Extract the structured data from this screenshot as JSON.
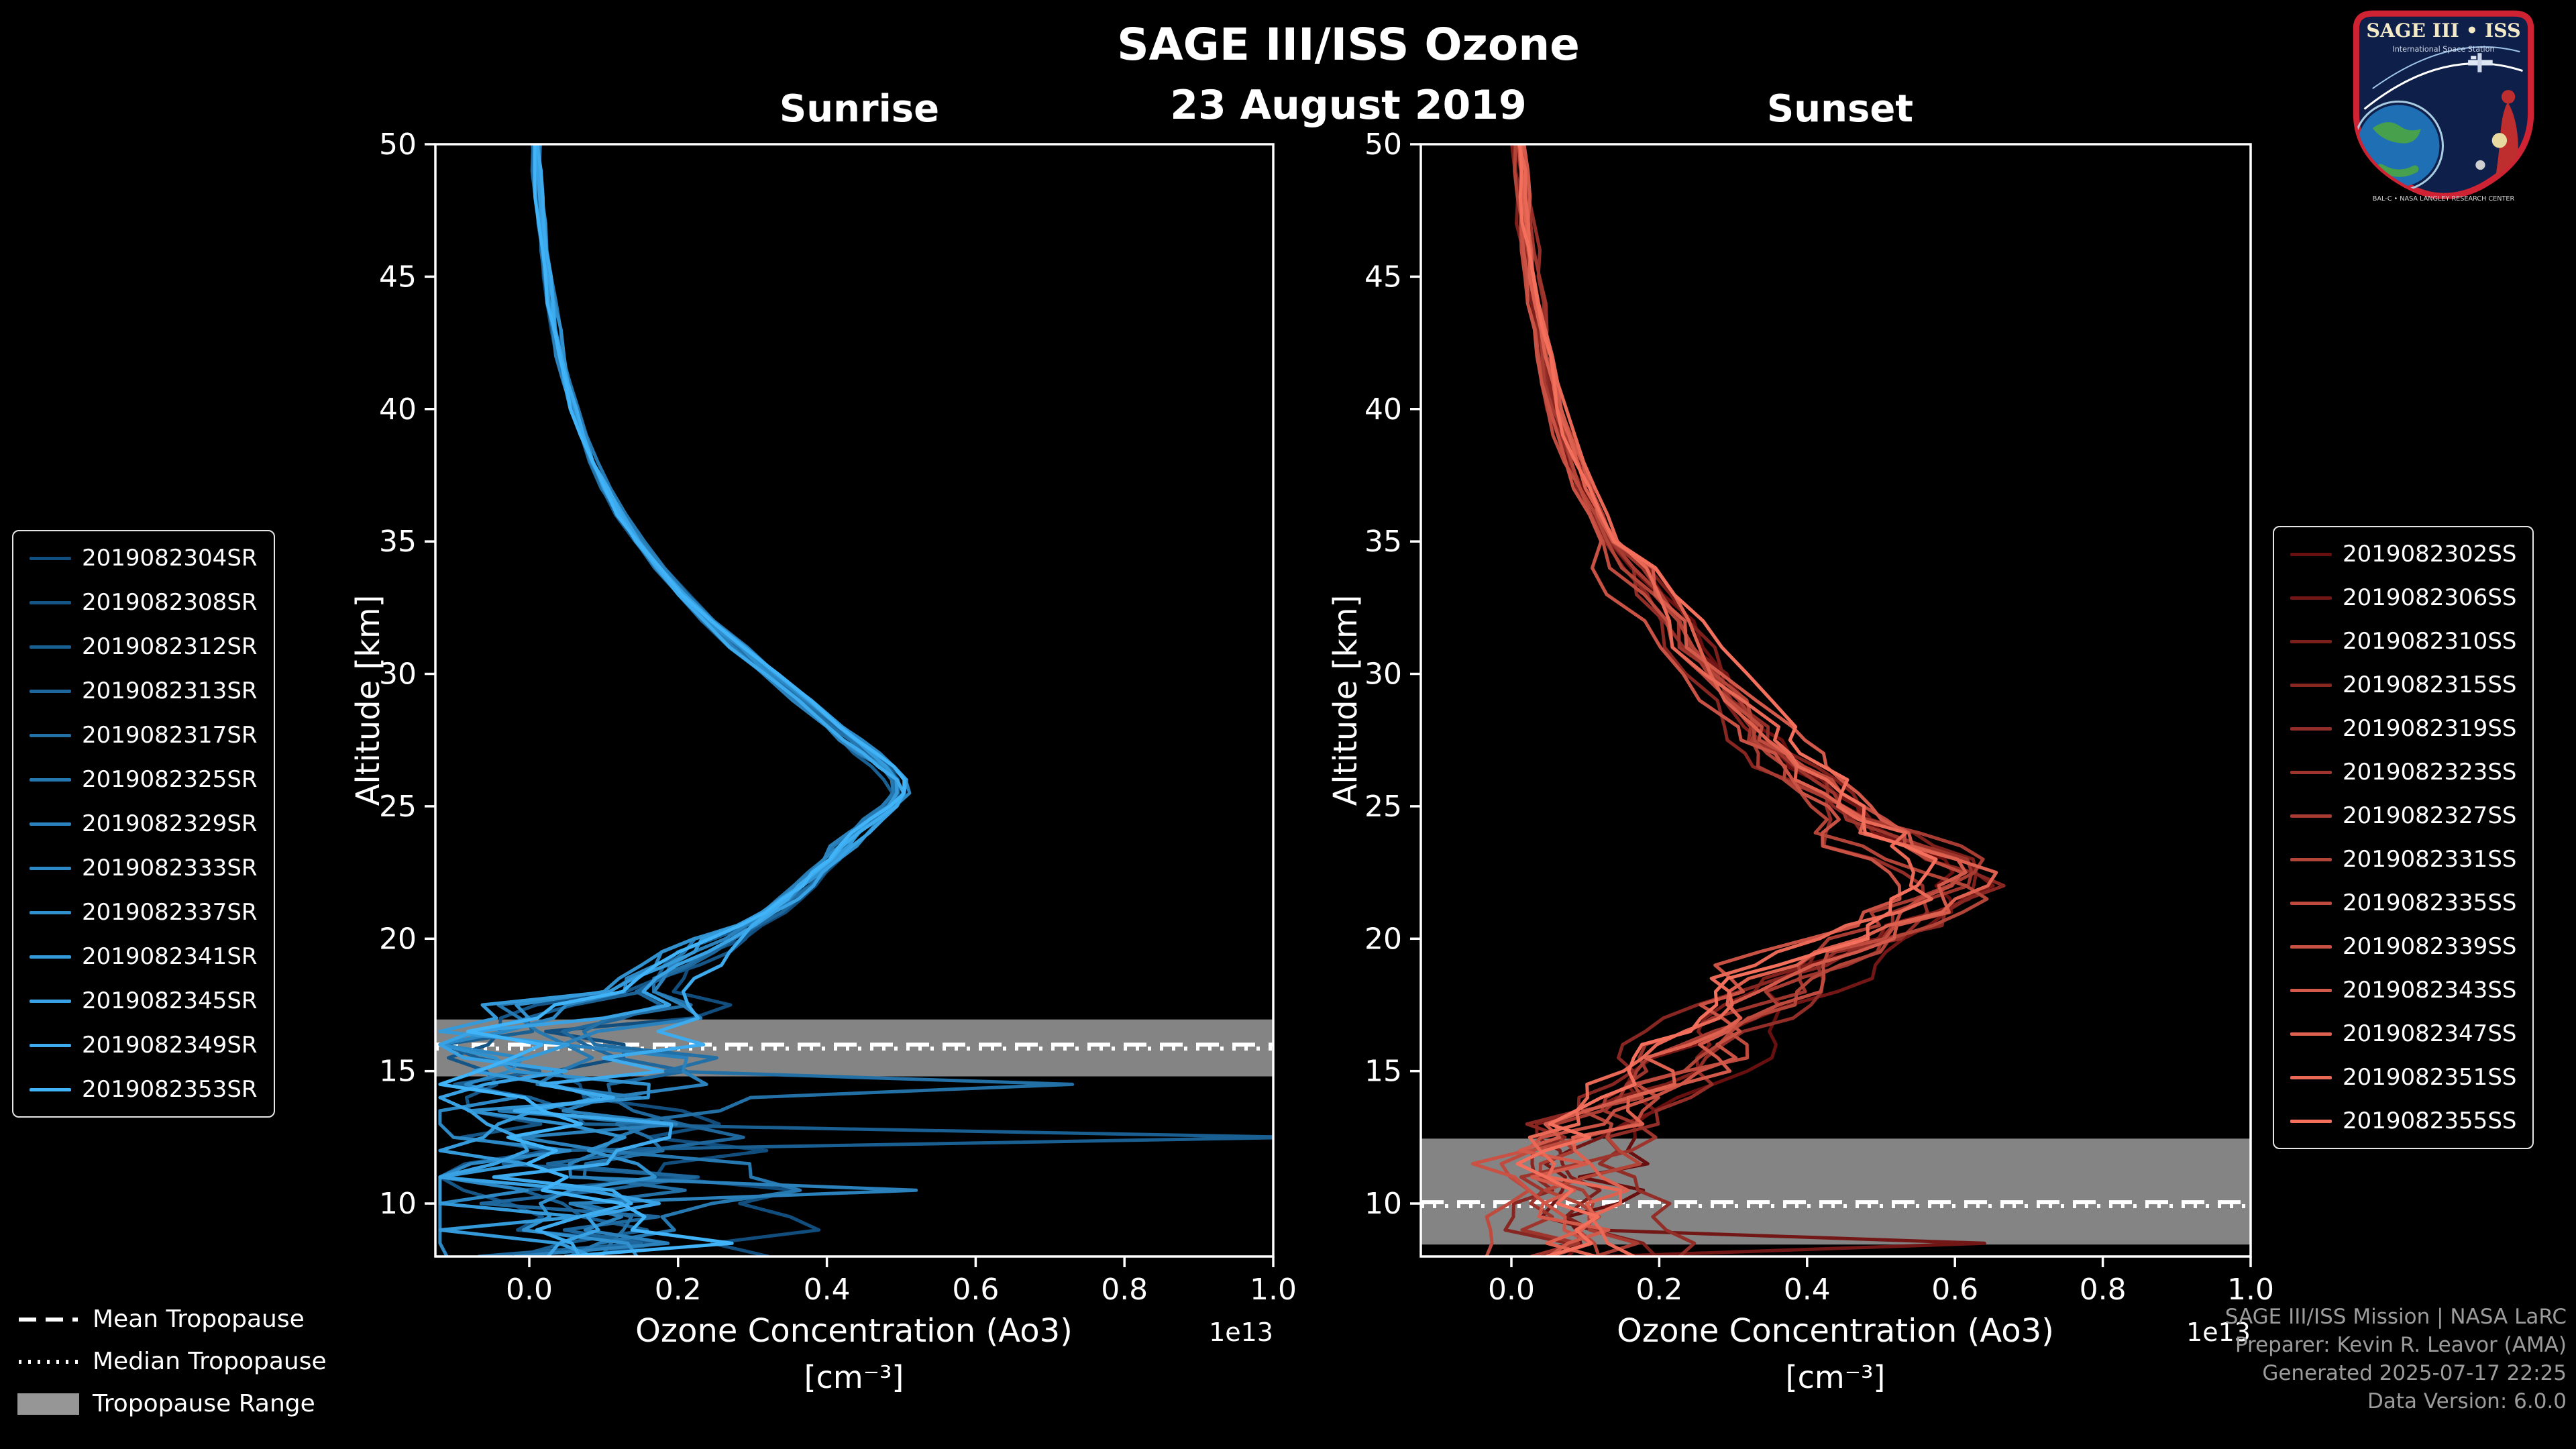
{
  "header": {
    "title": "SAGE III/ISS Ozone",
    "date": "23 August 2019"
  },
  "panels": [
    {
      "id": "sunrise",
      "title": "Sunrise",
      "xlabel": "Ozone Concentration (Ao3)",
      "xunits": "[cm⁻³]",
      "ylabel": "Altitude [km]",
      "offset_text": "1e13"
    },
    {
      "id": "sunset",
      "title": "Sunset",
      "xlabel": "Ozone Concentration (Ao3)",
      "xunits": "[cm⁻³]",
      "ylabel": "Altitude [km]",
      "offset_text": "1e13"
    }
  ],
  "colors": {
    "background": "#000000",
    "axis": "#ffffff",
    "band": "#969696",
    "tropopause_line": "#ffffff",
    "sunrise_dark": "#124e7d",
    "sunrise_light": "#41b3f8",
    "sunset_dark": "#67100f",
    "sunset_light": "#f4705c"
  },
  "tropopause_legend": {
    "items": [
      {
        "label": "Mean Tropopause",
        "style": "dashed"
      },
      {
        "label": "Median Tropopause",
        "style": "dotted"
      },
      {
        "label": "Tropopause Range",
        "style": "band"
      }
    ]
  },
  "credits": {
    "lines": [
      "SAGE III/ISS Mission | NASA LaRC",
      "Preparer: Kevin R. Leavor (AMA)",
      "Generated 2025-07-17 22:25",
      "Data Version: 6.0.0"
    ]
  },
  "logo": {
    "title": "SAGE III • ISS",
    "subtitle": "International Space Station",
    "ring_text": "BAL-C • NASA LANGLEY RESEARCH CENTER"
  },
  "chart_data": [
    {
      "type": "line",
      "title": "Sunrise",
      "xlabel": "Ozone Concentration (Ao3) [cm⁻³]",
      "ylabel": "Altitude [km]",
      "x_multiplier": "1e13",
      "xlim": [
        -0.125,
        1.0
      ],
      "ylim": [
        8,
        50
      ],
      "xticks": [
        0.0,
        0.2,
        0.4,
        0.6,
        0.8,
        1.0
      ],
      "yticks": [
        10,
        15,
        20,
        25,
        30,
        35,
        40,
        45,
        50
      ],
      "series_names": [
        "2019082304SR",
        "2019082308SR",
        "2019082312SR",
        "2019082313SR",
        "2019082317SR",
        "2019082325SR",
        "2019082329SR",
        "2019082333SR",
        "2019082337SR",
        "2019082341SR",
        "2019082345SR",
        "2019082349SR",
        "2019082353SR"
      ],
      "altitudes": [
        50,
        49,
        48,
        47,
        46,
        45,
        44,
        43,
        42,
        41,
        40,
        39,
        38,
        37,
        36,
        35,
        34,
        33,
        32,
        31,
        30,
        29,
        28,
        27.5,
        27,
        26.5,
        26,
        25.5,
        25,
        24.5,
        24,
        23.5,
        23,
        22.5,
        22,
        21.5,
        21,
        20.5,
        20,
        19.5,
        19,
        18.5,
        18,
        17.5,
        17,
        16.5,
        16,
        15.5,
        15,
        14.5,
        14,
        13.5,
        13,
        12.5,
        12,
        11.5,
        11,
        10.5,
        10,
        9.5,
        9,
        8.5,
        8
      ],
      "mean_profile": [
        0.01,
        0.012,
        0.014,
        0.017,
        0.02,
        0.024,
        0.028,
        0.034,
        0.04,
        0.048,
        0.058,
        0.07,
        0.084,
        0.102,
        0.122,
        0.146,
        0.174,
        0.205,
        0.24,
        0.28,
        0.322,
        0.365,
        0.408,
        0.43,
        0.452,
        0.478,
        0.497,
        0.5,
        0.488,
        0.466,
        0.444,
        0.424,
        0.408,
        0.39,
        0.372,
        0.35,
        0.325,
        0.295,
        0.262,
        0.228,
        0.2,
        0.172,
        0.148,
        0.118,
        0.082,
        0.055,
        0.042,
        0.055,
        0.048,
        0.04,
        0.06,
        0.042,
        0.068,
        0.05,
        0.078,
        0.042,
        0.068,
        0.088,
        0.048,
        0.078,
        0.04,
        0.095,
        0.065
      ],
      "tropopause": {
        "mean": 16.0,
        "median": 15.85,
        "range": [
          14.8,
          16.95
        ]
      },
      "outliers": [
        {
          "series": 2,
          "altitude": 12.5,
          "value": 1.03
        },
        {
          "series": 4,
          "altitude": 14.5,
          "value": 0.73
        },
        {
          "series": 6,
          "altitude": 10.5,
          "value": 0.52
        }
      ]
    },
    {
      "type": "line",
      "title": "Sunset",
      "xlabel": "Ozone Concentration (Ao3) [cm⁻³]",
      "ylabel": "Altitude [km]",
      "x_multiplier": "1e13",
      "xlim": [
        -0.125,
        1.0
      ],
      "ylim": [
        8,
        50
      ],
      "xticks": [
        0.0,
        0.2,
        0.4,
        0.6,
        0.8,
        1.0
      ],
      "yticks": [
        10,
        15,
        20,
        25,
        30,
        35,
        40,
        45,
        50
      ],
      "series_names": [
        "2019082302SS",
        "2019082306SS",
        "2019082310SS",
        "2019082315SS",
        "2019082319SS",
        "2019082323SS",
        "2019082327SS",
        "2019082331SS",
        "2019082335SS",
        "2019082339SS",
        "2019082343SS",
        "2019082347SS",
        "2019082351SS",
        "2019082355SS"
      ],
      "altitudes": [
        50,
        49,
        48,
        47,
        46,
        45,
        44,
        43,
        42,
        41,
        40,
        39,
        38,
        37,
        36,
        35,
        34,
        33,
        32,
        31,
        30,
        29,
        28,
        27.5,
        27,
        26.5,
        26,
        25.5,
        25,
        24.5,
        24,
        23.5,
        23,
        22.5,
        22,
        21.5,
        21,
        20.5,
        20,
        19.5,
        19,
        18.5,
        18,
        17.5,
        17,
        16.5,
        16,
        15.5,
        15,
        14.5,
        14,
        13.5,
        13,
        12.5,
        12,
        11.5,
        11,
        10.5,
        10,
        9.5,
        9,
        8.5,
        8
      ],
      "mean_profile": [
        0.01,
        0.013,
        0.016,
        0.019,
        0.023,
        0.027,
        0.032,
        0.038,
        0.044,
        0.052,
        0.061,
        0.072,
        0.084,
        0.098,
        0.114,
        0.132,
        0.152,
        0.175,
        0.2,
        0.228,
        0.258,
        0.288,
        0.32,
        0.336,
        0.354,
        0.372,
        0.392,
        0.412,
        0.434,
        0.458,
        0.482,
        0.51,
        0.538,
        0.565,
        0.578,
        0.572,
        0.552,
        0.515,
        0.47,
        0.428,
        0.395,
        0.365,
        0.34,
        0.318,
        0.3,
        0.282,
        0.262,
        0.242,
        0.22,
        0.196,
        0.172,
        0.15,
        0.132,
        0.118,
        0.104,
        0.092,
        0.082,
        0.088,
        0.078,
        0.07,
        0.095,
        0.115,
        0.095
      ],
      "tropopause": {
        "mean": 10.05,
        "median": 9.9,
        "range": [
          8.45,
          12.45
        ]
      },
      "outliers": [
        {
          "series": 1,
          "altitude": 8.5,
          "value": 0.64
        }
      ]
    }
  ]
}
